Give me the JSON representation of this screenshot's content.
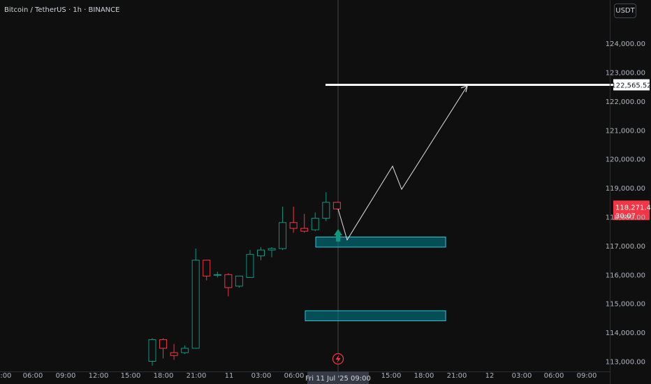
{
  "header": {
    "symbol": "Bitcoin / TetherUS · 1h · BINANCE",
    "currency_button": "USDT"
  },
  "colors": {
    "background": "#0f0f0f",
    "up": "#089981",
    "down": "#f23645",
    "zone_fill": "#00838f",
    "zone_border": "#26c6da",
    "target_line": "#ffffff",
    "projection": "#e0e0e0",
    "axis_text": "#b2b5be"
  },
  "chart_data": {
    "type": "candlestick",
    "title": "Bitcoin / TetherUS · 1h · BINANCE",
    "y_axis": {
      "ticks": [
        113000,
        114000,
        115000,
        116000,
        117000,
        118000,
        119000,
        120000,
        121000,
        122000,
        123000,
        124000
      ],
      "tick_labels": [
        "113,000.00",
        "114,000.00",
        "115,000.00",
        "116,000.00",
        "117,000.00",
        "118,000.00",
        "119,000.00",
        "120,000.00",
        "121,000.00",
        "122,000.00",
        "123,000.00",
        "124,000.00"
      ],
      "range": [
        112850,
        125200
      ]
    },
    "x_axis": {
      "tick_labels": [
        "00:00",
        "06:00",
        "09:00",
        "12:00",
        "15:00",
        "18:00",
        "21:00",
        "11",
        "03:00",
        "06:00",
        "09:00",
        "12:00",
        "15:00",
        "18:00",
        "21:00",
        "12",
        "03:00",
        "06:00",
        "09:00"
      ],
      "cursor_label": "Fri 11 Jul '25 09:00"
    },
    "candles": [
      {
        "o": 113000,
        "h": 113800,
        "l": 112850,
        "c": 113750
      },
      {
        "o": 113750,
        "h": 113800,
        "l": 113100,
        "c": 113450
      },
      {
        "o": 113300,
        "h": 113600,
        "l": 113050,
        "c": 113200
      },
      {
        "o": 113300,
        "h": 113550,
        "l": 113250,
        "c": 113450
      },
      {
        "o": 113450,
        "h": 116900,
        "l": 113450,
        "c": 116500
      },
      {
        "o": 116500,
        "h": 116500,
        "l": 115800,
        "c": 115950
      },
      {
        "o": 116000,
        "h": 116100,
        "l": 115900,
        "c": 116000
      },
      {
        "o": 116000,
        "h": 116050,
        "l": 115250,
        "c": 115550
      },
      {
        "o": 115600,
        "h": 115950,
        "l": 115550,
        "c": 115950
      },
      {
        "o": 115900,
        "h": 116850,
        "l": 115900,
        "c": 116700
      },
      {
        "o": 116650,
        "h": 116950,
        "l": 116500,
        "c": 116850
      },
      {
        "o": 116850,
        "h": 116950,
        "l": 116600,
        "c": 116900
      },
      {
        "o": 116900,
        "h": 118350,
        "l": 116850,
        "c": 117800
      },
      {
        "o": 117800,
        "h": 118350,
        "l": 117450,
        "c": 117600
      },
      {
        "o": 117600,
        "h": 118100,
        "l": 117450,
        "c": 117500
      },
      {
        "o": 117550,
        "h": 118150,
        "l": 117500,
        "c": 117950
      },
      {
        "o": 117950,
        "h": 118850,
        "l": 117850,
        "c": 118500
      },
      {
        "o": 118500,
        "h": 118500,
        "l": 118250,
        "c": 118271.41
      }
    ],
    "current_price": {
      "label": "118,271.41",
      "countdown": "30:07"
    },
    "target": {
      "value": 122565.52,
      "label": "122,565.52"
    },
    "zones": [
      {
        "name": "upper-demand-zone",
        "low": 116950,
        "high": 117300
      },
      {
        "name": "lower-demand-zone",
        "low": 114400,
        "high": 114750
      }
    ],
    "projection_path": [
      117200,
      119750,
      118950,
      122530
    ]
  }
}
